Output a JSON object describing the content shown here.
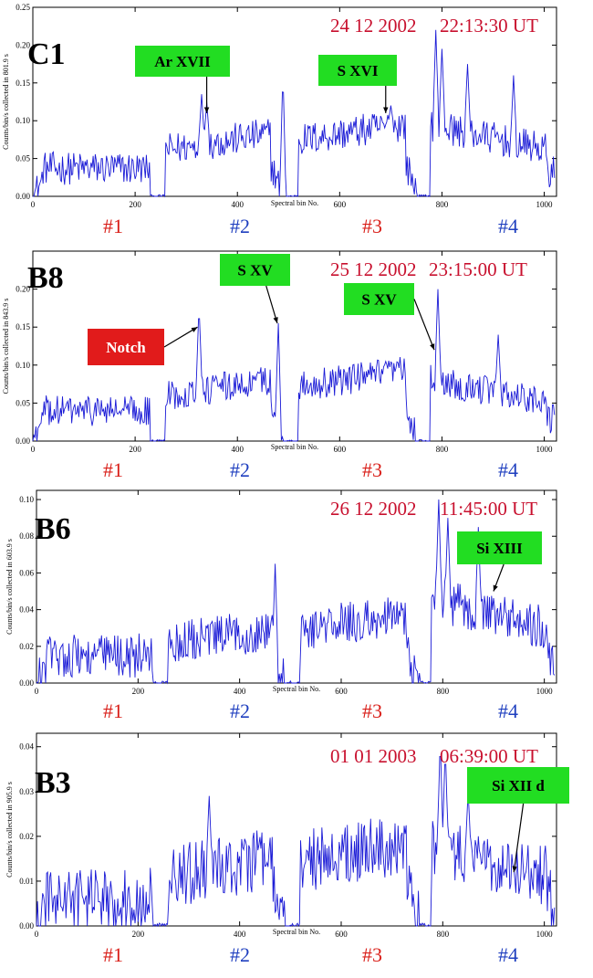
{
  "chart_data": [
    {
      "type": "line",
      "panel": "C1",
      "date": "24 12 2002",
      "time": "22:13:30 UT",
      "ylabel": "Counts/bin/s collected in   801.9 s",
      "xlabel": "Spectral bin No.",
      "xlim": [
        0,
        1024
      ],
      "ylim": [
        0,
        0.25
      ],
      "x_ticks": [
        "0",
        "200",
        "400",
        "600",
        "800",
        "1000"
      ],
      "y_ticks": [
        "0.00",
        "0.05",
        "0.10",
        "0.15",
        "0.20",
        "0.25"
      ],
      "segments": [
        {
          "label": "#1",
          "color": "#d91e18"
        },
        {
          "label": "#2",
          "color": "#1f3fbf"
        },
        {
          "label": "#3",
          "color": "#d91e18"
        },
        {
          "label": "#4",
          "color": "#1f3fbf"
        }
      ],
      "levels": [
        0.037,
        0.072,
        0.083,
        0.082
      ],
      "noise": 0.022,
      "peaks": [
        [
          330,
          0.135
        ],
        [
          340,
          0.125
        ],
        [
          489,
          0.165
        ],
        [
          700,
          0.12
        ],
        [
          788,
          0.22
        ],
        [
          800,
          0.195
        ],
        [
          850,
          0.175
        ],
        [
          940,
          0.16
        ]
      ],
      "annotations": [
        {
          "text": "Ar XVII",
          "color": "#22dd22",
          "x": 340,
          "y": 0.11
        },
        {
          "text": "S XVI",
          "color": "#22dd22",
          "x": 690,
          "y": 0.11
        }
      ]
    },
    {
      "type": "line",
      "panel": "B8",
      "date": "25 12 2002",
      "time": "23:15:00 UT",
      "ylabel": "Counts/bin/s collected in   843.9 s",
      "xlabel": "Spectral bin No.",
      "xlim": [
        0,
        1024
      ],
      "ylim": [
        0,
        0.25
      ],
      "x_ticks": [
        "0",
        "200",
        "400",
        "600",
        "800",
        "1000"
      ],
      "y_ticks": [
        "0.00",
        "0.05",
        "0.10",
        "0.15",
        "0.20"
      ],
      "segments": [
        {
          "label": "#1",
          "color": "#d91e18"
        },
        {
          "label": "#2",
          "color": "#1f3fbf"
        },
        {
          "label": "#3",
          "color": "#d91e18"
        },
        {
          "label": "#4",
          "color": "#1f3fbf"
        }
      ],
      "levels": [
        0.04,
        0.07,
        0.08,
        0.07
      ],
      "noise": 0.02,
      "peaks": [
        [
          325,
          0.18
        ],
        [
          480,
          0.155
        ],
        [
          792,
          0.2
        ],
        [
          910,
          0.14
        ]
      ],
      "annotations": [
        {
          "text": "S XV",
          "color": "#22dd22",
          "x": 478,
          "y": 0.155
        },
        {
          "text": "S XV",
          "color": "#22dd22",
          "x": 785,
          "y": 0.12
        },
        {
          "text": "Notch",
          "color": "#e11b1b",
          "x": 322,
          "y": 0.15
        }
      ]
    },
    {
      "type": "line",
      "panel": "B6",
      "date": "26 12 2002",
      "time": "11:45:00 UT",
      "ylabel": "Counts/bin/s collected in   603.9 s",
      "xlabel": "Spectral bin No.",
      "xlim": [
        0,
        1024
      ],
      "ylim": [
        0,
        0.105
      ],
      "x_ticks": [
        "0",
        "200",
        "400",
        "600",
        "800",
        "1000"
      ],
      "y_ticks": [
        "0.00",
        "0.02",
        "0.04",
        "0.06",
        "0.08",
        "0.10"
      ],
      "segments": [
        {
          "label": "#1",
          "color": "#d91e18"
        },
        {
          "label": "#2",
          "color": "#1f3fbf"
        },
        {
          "label": "#3",
          "color": "#d91e18"
        },
        {
          "label": "#4",
          "color": "#1f3fbf"
        }
      ],
      "levels": [
        0.015,
        0.025,
        0.032,
        0.04
      ],
      "noise": 0.012,
      "peaks": [
        [
          470,
          0.065
        ],
        [
          792,
          0.1
        ],
        [
          810,
          0.09
        ],
        [
          870,
          0.085
        ]
      ],
      "annotations": [
        {
          "text": "Si XIII",
          "color": "#22dd22",
          "x": 900,
          "y": 0.05
        }
      ]
    },
    {
      "type": "line",
      "panel": "B3",
      "date": "01 01 2003",
      "time": "06:39:00 UT",
      "ylabel": "Counts/bin/s collected in   905.9 s",
      "xlabel": "Spectral bin No.",
      "xlim": [
        0,
        1024
      ],
      "ylim": [
        0,
        0.043
      ],
      "x_ticks": [
        "0",
        "200",
        "400",
        "600",
        "800",
        "1000"
      ],
      "y_ticks": [
        "0.00",
        "0.01",
        "0.02",
        "0.03",
        "0.04"
      ],
      "segments": [
        {
          "label": "#1",
          "color": "#d91e18"
        },
        {
          "label": "#2",
          "color": "#1f3fbf"
        },
        {
          "label": "#3",
          "color": "#d91e18"
        },
        {
          "label": "#4",
          "color": "#1f3fbf"
        }
      ],
      "levels": [
        0.006,
        0.013,
        0.016,
        0.015
      ],
      "noise": 0.007,
      "peaks": [
        [
          340,
          0.029
        ],
        [
          795,
          0.042
        ],
        [
          805,
          0.04
        ],
        [
          850,
          0.03
        ]
      ],
      "annotations": [
        {
          "text": "Si XII d",
          "color": "#22dd22",
          "x": 940,
          "y": 0.012
        }
      ]
    }
  ]
}
